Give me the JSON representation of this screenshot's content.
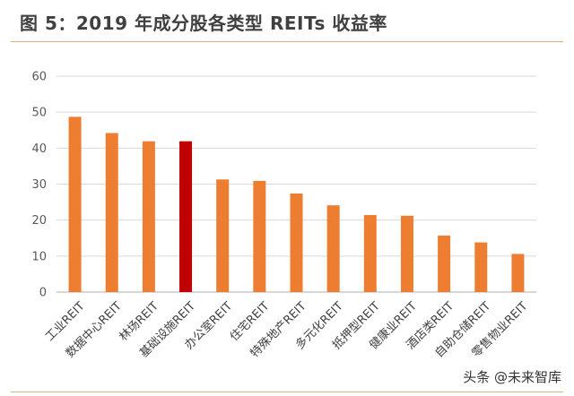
{
  "figure_title": "图 5：2019 年成分股各类型 REITs 收益率",
  "watermark": "头条 @未来智库",
  "colors": {
    "bar": "#ed7d31",
    "highlight": "#c00000",
    "grid": "#d9d9d9",
    "axis": "#bfbfbf"
  },
  "chart_data": {
    "type": "bar",
    "title": "",
    "xlabel": "",
    "ylabel": "",
    "ylim": [
      0,
      60
    ],
    "yticks": [
      0,
      10,
      20,
      30,
      40,
      50,
      60
    ],
    "grid": true,
    "legend": "none",
    "categories": [
      "工业REIT",
      "数据中心REIT",
      "林场REIT",
      "基础设施REIT",
      "办公室REIT",
      "住宅REIT",
      "特殊地产REIT",
      "多元化REIT",
      "抵押型REIT",
      "健康业REIT",
      "酒店类REIT",
      "自助仓储REIT",
      "零售物业REIT"
    ],
    "values": [
      48.7,
      44.2,
      41.9,
      41.9,
      31.3,
      30.9,
      27.4,
      24.1,
      21.4,
      21.2,
      15.7,
      13.8,
      10.6
    ],
    "highlight_index": 3
  }
}
